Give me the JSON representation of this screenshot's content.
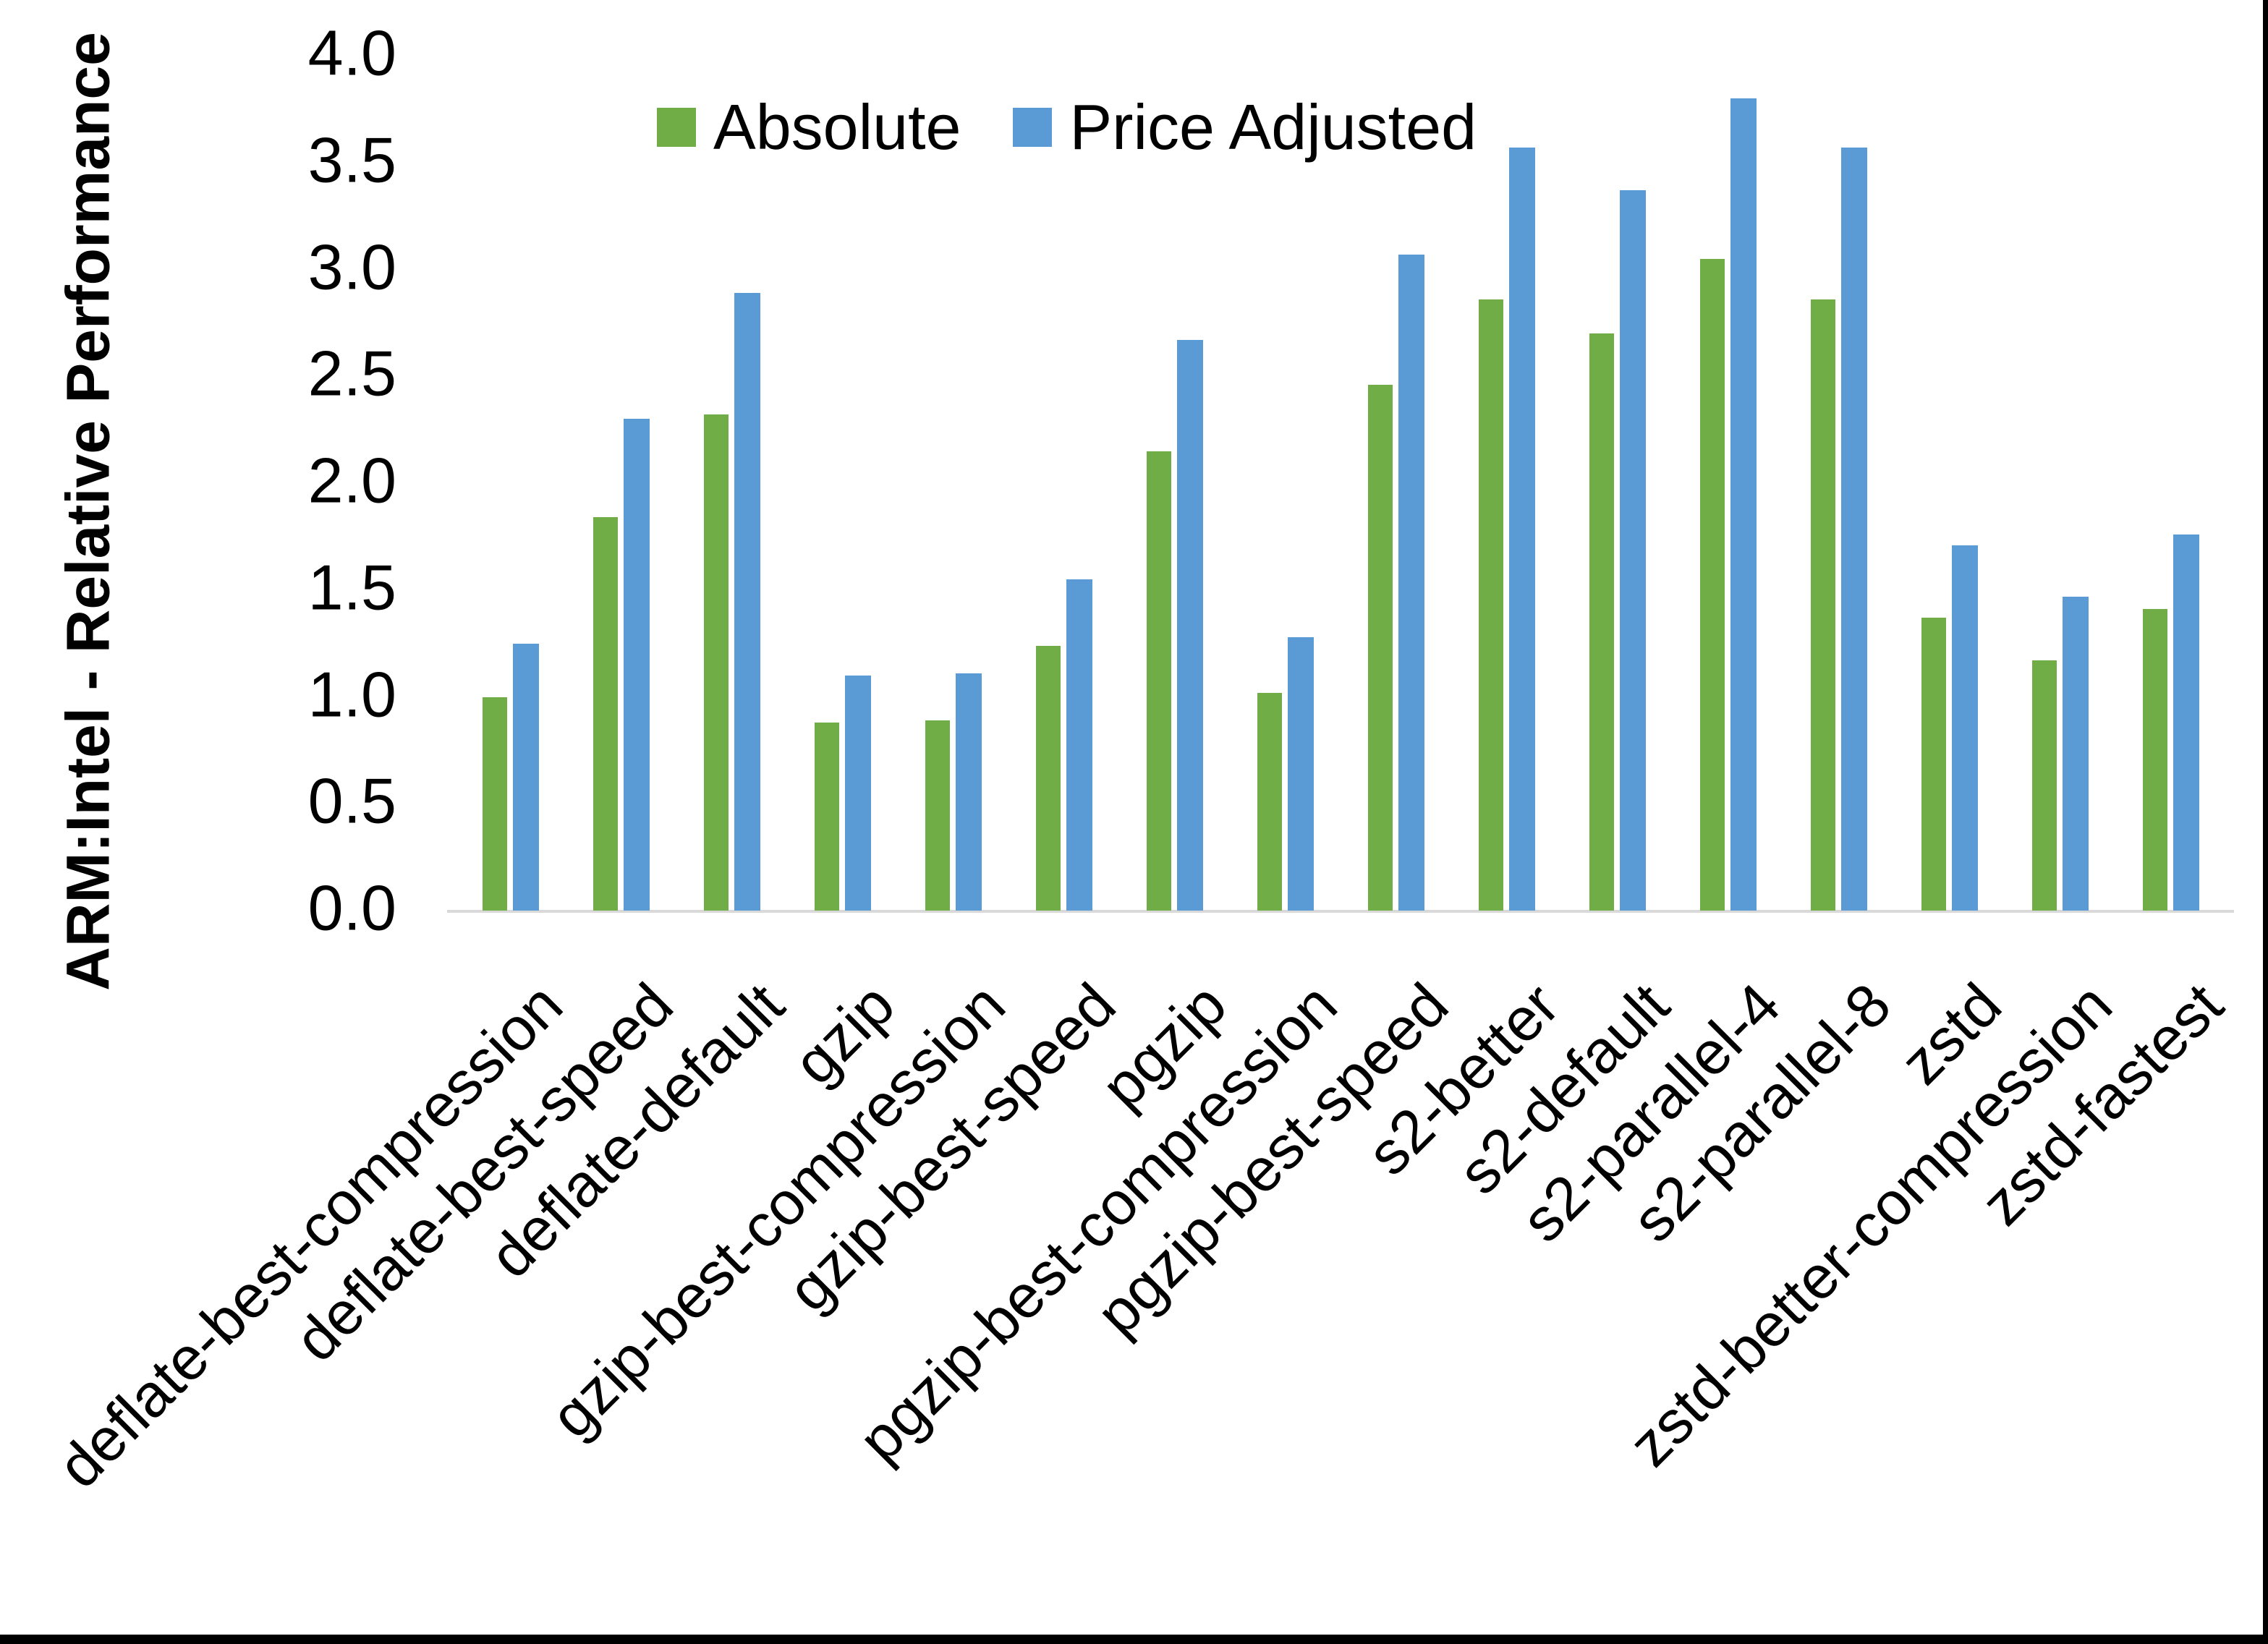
{
  "axis": {
    "y_title": "ARM:Intel - Relative Performance"
  },
  "legend": {
    "absolute_label": "Absolute",
    "price_adjusted_label": "Price Adjusted"
  },
  "colors": {
    "absolute": "#70AD47",
    "price_adjusted": "#5B9BD5",
    "axis_line": "#D9D9D9",
    "text": "#000000",
    "background": "#FFFFFF",
    "frame_edge": "#000000"
  },
  "chart_data": {
    "type": "bar",
    "title": "",
    "xlabel": "",
    "ylabel": "ARM:Intel - Relative Performance",
    "ylim": [
      0,
      4
    ],
    "ytick_step": 0.5,
    "ytick_labels": [
      "0.0",
      "0.5",
      "1.0",
      "1.5",
      "2.0",
      "2.5",
      "3.0",
      "3.5",
      "4.0"
    ],
    "grid": "off",
    "legend_position": "top-center",
    "categories": [
      "deflate-best-compression",
      "deflate-best-speed",
      "deflate-default",
      "gzip",
      "gzip-best-compression",
      "gzip-best-speed",
      "pgzip",
      "pgzip-best-compression",
      "pgzip-best-speed",
      "s2-better",
      "s2-default",
      "s2-parallel-4",
      "s2-parallel-8",
      "zstd",
      "zstd-better-compression",
      "zstd-fastest"
    ],
    "series": [
      {
        "name": "Absolute",
        "color": "#70AD47",
        "values": [
          1.0,
          1.84,
          2.32,
          0.88,
          0.89,
          1.24,
          2.15,
          1.02,
          2.46,
          2.86,
          2.7,
          3.05,
          2.86,
          1.37,
          1.17,
          1.41
        ]
      },
      {
        "name": "Price Adjusted",
        "color": "#5B9BD5",
        "values": [
          1.25,
          2.3,
          2.89,
          1.1,
          1.11,
          1.55,
          2.67,
          1.28,
          3.07,
          3.57,
          3.37,
          3.8,
          3.57,
          1.71,
          1.47,
          1.76
        ]
      }
    ]
  }
}
